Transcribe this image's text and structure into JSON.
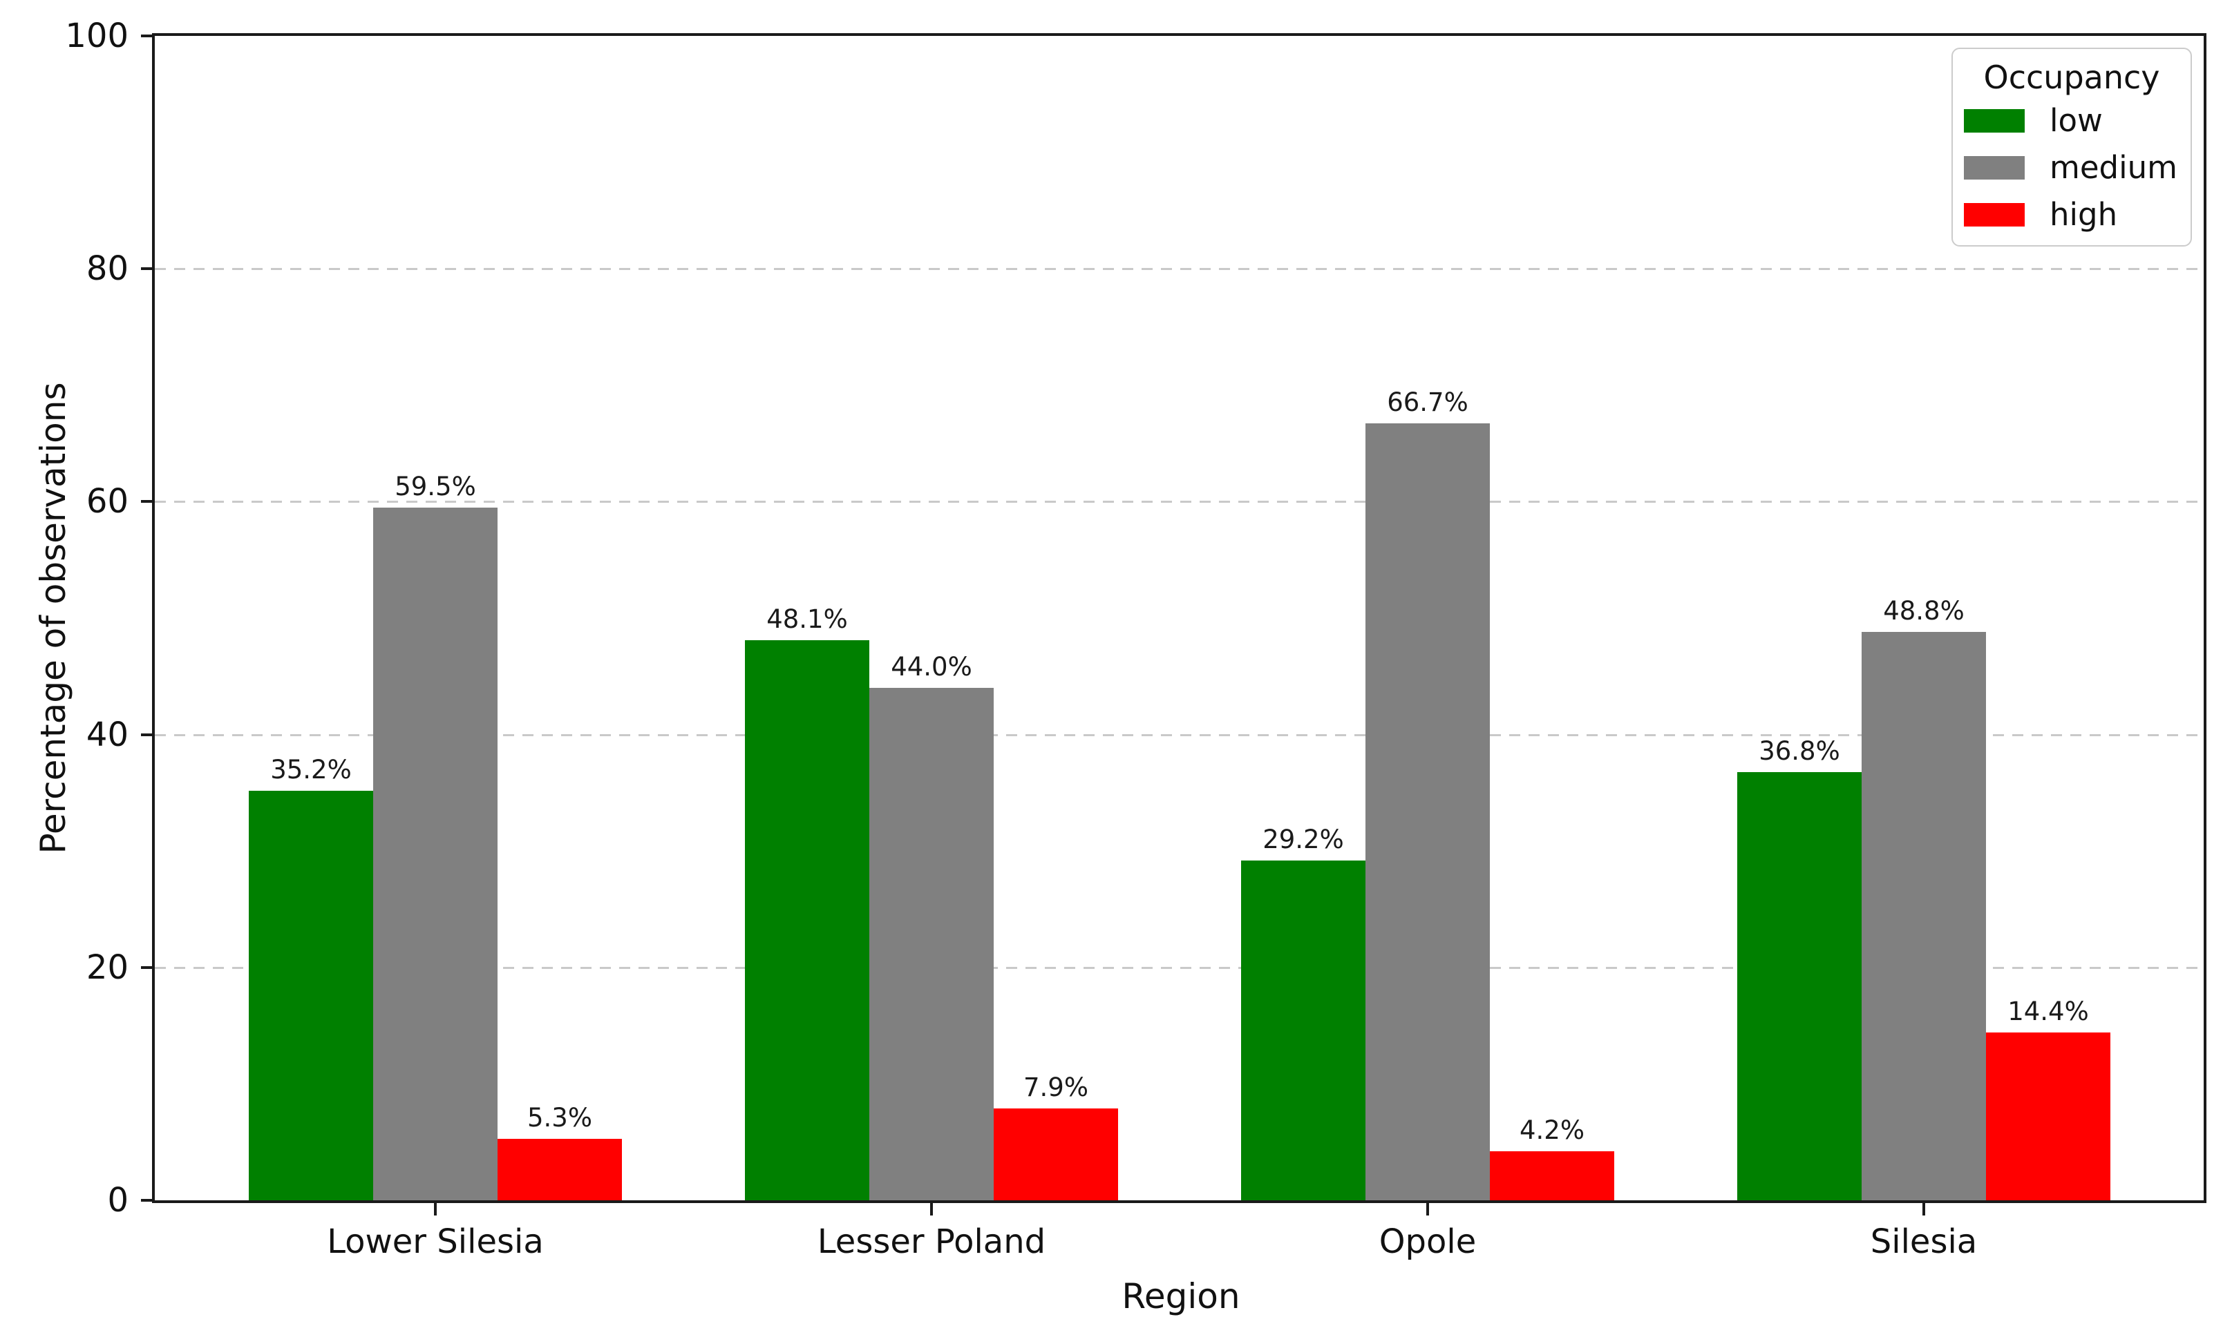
{
  "chart_data": {
    "type": "bar",
    "title": "",
    "xlabel": "Region",
    "ylabel": "Percentage of observations",
    "ylim": [
      0,
      100
    ],
    "yticks": [
      0,
      20,
      40,
      60,
      80,
      100
    ],
    "grid": {
      "axis": "y",
      "style": "dashed",
      "color": "#c9c9c9",
      "lines_at": [
        20,
        40,
        60,
        80
      ]
    },
    "categories": [
      "Lower Silesia",
      "Lesser Poland",
      "Opole",
      "Silesia"
    ],
    "series": [
      {
        "name": "low",
        "color": "#008000",
        "values": [
          35.2,
          48.1,
          29.2,
          36.8
        ],
        "labels": [
          "35.2%",
          "48.1%",
          "29.2%",
          "36.8%"
        ]
      },
      {
        "name": "medium",
        "color": "#808080",
        "values": [
          59.5,
          44.0,
          66.7,
          48.8
        ],
        "labels": [
          "59.5%",
          "44.0%",
          "66.7%",
          "48.8%"
        ]
      },
      {
        "name": "high",
        "color": "#ff0000",
        "values": [
          5.3,
          7.9,
          4.2,
          14.4
        ],
        "labels": [
          "5.3%",
          "7.9%",
          "4.2%",
          "14.4%"
        ]
      }
    ],
    "legend": {
      "title": "Occupancy",
      "position": "upper right",
      "entries": [
        {
          "label": "low",
          "color": "#008000"
        },
        {
          "label": "medium",
          "color": "#808080"
        },
        {
          "label": "high",
          "color": "#ff0000"
        }
      ]
    }
  }
}
